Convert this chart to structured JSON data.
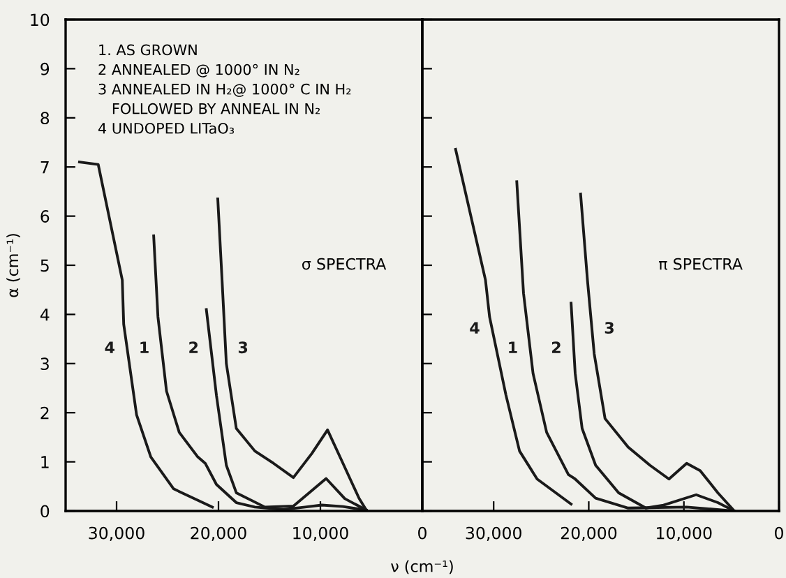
{
  "chart_data": [
    {
      "type": "line",
      "ylabel": "α (cm⁻¹)",
      "xlim": [
        35000,
        0
      ],
      "ylim": [
        0,
        10
      ],
      "xticks": [
        {
          "value": 30000,
          "label": "30,000"
        },
        {
          "value": 20000,
          "label": "20,000"
        },
        {
          "value": 10000,
          "label": "10,000"
        },
        0
      ],
      "yticks": [
        0,
        1,
        2,
        3,
        4,
        5,
        6,
        7,
        8,
        9,
        10
      ],
      "grid": false,
      "legend": false,
      "series": [
        {
          "name": "1",
          "color": "#1a1a1a",
          "x": [
            26360,
            25940,
            25100,
            23850,
            22030,
            21300,
            20200,
            18250,
            16430,
            13630,
            11500,
            9860,
            7800,
            5500
          ],
          "values": [
            5.6,
            3.95,
            2.44,
            1.6,
            1.1,
            0.97,
            0.54,
            0.17,
            0.08,
            0.03,
            0.08,
            0.12,
            0.09,
            0.02
          ]
        },
        {
          "name": "2",
          "color": "#1a1a1a",
          "x": [
            21190,
            20200,
            19230,
            18250,
            15450,
            12650,
            9440,
            7600,
            5500
          ],
          "values": [
            4.1,
            2.35,
            0.93,
            0.37,
            0.08,
            0.1,
            0.66,
            0.25,
            0.02
          ]
        },
        {
          "name": "3",
          "color": "#1a1a1a",
          "x": [
            20070,
            19650,
            19230,
            18250,
            16430,
            14600,
            12650,
            10840,
            9300,
            8030,
            6210,
            5500
          ],
          "values": [
            6.35,
            4.7,
            3.0,
            1.68,
            1.22,
            0.97,
            0.68,
            1.17,
            1.65,
            1.08,
            0.26,
            0.02
          ]
        },
        {
          "name": "4",
          "color": "#1a1a1a",
          "x": [
            33640,
            31800,
            29440,
            29300,
            28040,
            26640,
            24400,
            20600
          ],
          "values": [
            7.1,
            7.05,
            4.7,
            3.8,
            1.96,
            1.1,
            0.45,
            0.08
          ]
        }
      ],
      "annotations": [
        "1. AS GROWN\n2 ANNEALED @ 1000° IN N₂\n3 ANNEALED IN H₂@ 1000° C IN H₂\n   FOLLOWED BY ANNEAL IN N₂\n4 UNDOPED LITaO₃",
        "σ SPECTRA"
      ]
    },
    {
      "type": "line",
      "xlabel": "ν (cm⁻¹)",
      "xlim": [
        37500,
        0
      ],
      "ylim": [
        0,
        10
      ],
      "xticks": [
        {
          "value": 30000,
          "label": "30,000"
        },
        {
          "value": 20000,
          "label": "20,000"
        },
        {
          "value": 10000,
          "label": "10,000"
        },
        0
      ],
      "yticks": [
        0,
        1,
        2,
        3,
        4,
        5,
        6,
        7,
        8,
        9,
        10
      ],
      "tick_labels": "x",
      "grid": false,
      "legend": false,
      "series": [
        {
          "name": "1",
          "color": "#1a1a1a",
          "x": [
            27570,
            26860,
            25860,
            24430,
            22140,
            21430,
            19280,
            15860,
            9710,
            4700
          ],
          "values": [
            6.7,
            4.43,
            2.8,
            1.6,
            0.74,
            0.65,
            0.26,
            0.06,
            0.08,
            0.0
          ]
        },
        {
          "name": "2",
          "color": "#1a1a1a",
          "x": [
            21860,
            21430,
            20700,
            19280,
            16860,
            14000,
            12140,
            8710,
            6430,
            4700
          ],
          "values": [
            4.23,
            2.8,
            1.68,
            0.93,
            0.37,
            0.06,
            0.12,
            0.33,
            0.17,
            0.0
          ]
        },
        {
          "name": "3",
          "color": "#1a1a1a",
          "x": [
            20860,
            20140,
            19430,
            18290,
            15860,
            13570,
            11570,
            9710,
            8290,
            6430,
            4700
          ],
          "values": [
            6.45,
            4.7,
            3.2,
            1.88,
            1.3,
            0.93,
            0.65,
            0.97,
            0.82,
            0.37,
            0.0
          ]
        },
        {
          "name": "4",
          "color": "#1a1a1a",
          "x": [
            34000,
            30860,
            30430,
            28710,
            27280,
            25430,
            21860
          ],
          "values": [
            7.36,
            4.7,
            3.95,
            2.36,
            1.22,
            0.65,
            0.14
          ]
        }
      ],
      "annotations": [
        "π SPECTRA"
      ]
    }
  ]
}
